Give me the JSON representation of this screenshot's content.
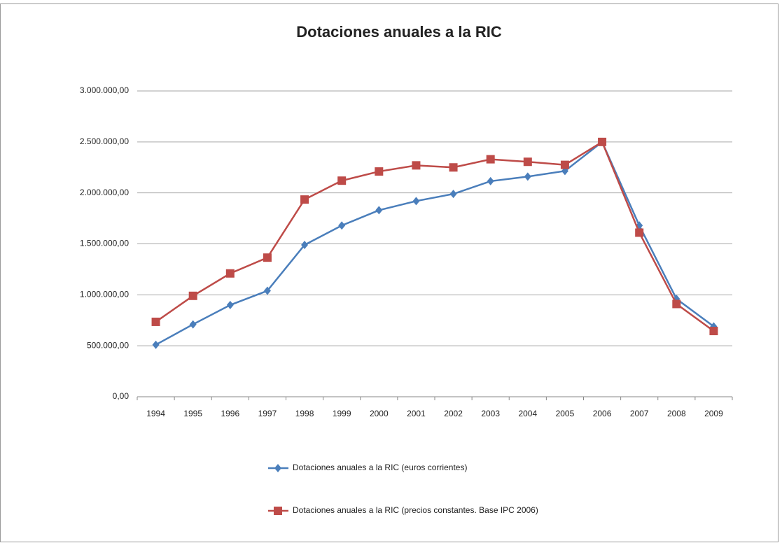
{
  "chart_data": {
    "type": "line",
    "title": "Dotaciones anuales a la RIC",
    "categories": [
      "1994",
      "1995",
      "1996",
      "1997",
      "1998",
      "1999",
      "2000",
      "2001",
      "2002",
      "2003",
      "2004",
      "2005",
      "2006",
      "2007",
      "2008",
      "2009"
    ],
    "series": [
      {
        "name": "Dotaciones anuales a la RIC (euros corrientes)",
        "color": "#4a7ebb",
        "marker": "diamond",
        "values": [
          510000,
          710000,
          900000,
          1040000,
          1490000,
          1680000,
          1830000,
          1920000,
          1990000,
          2115000,
          2160000,
          2215000,
          2500000,
          1680000,
          960000,
          690000
        ]
      },
      {
        "name": "Dotaciones anuales a la RIC (precios constantes. Base IPC 2006)",
        "color": "#be4b48",
        "marker": "square",
        "values": [
          735000,
          990000,
          1210000,
          1365000,
          1935000,
          2120000,
          2210000,
          2270000,
          2250000,
          2330000,
          2305000,
          2275000,
          2500000,
          1610000,
          910000,
          645000
        ]
      }
    ],
    "ylim": [
      0,
      3000000
    ],
    "yticks": [
      {
        "value": 0,
        "label": "0,00"
      },
      {
        "value": 500000,
        "label": "500.000,00"
      },
      {
        "value": 1000000,
        "label": "1.000.000,00"
      },
      {
        "value": 1500000,
        "label": "1.500.000,00"
      },
      {
        "value": 2000000,
        "label": "2.000.000,00"
      },
      {
        "value": 2500000,
        "label": "2.500.000,00"
      },
      {
        "value": 3000000,
        "label": "3.000.000,00"
      }
    ],
    "grid": true,
    "legend": "bottom"
  }
}
